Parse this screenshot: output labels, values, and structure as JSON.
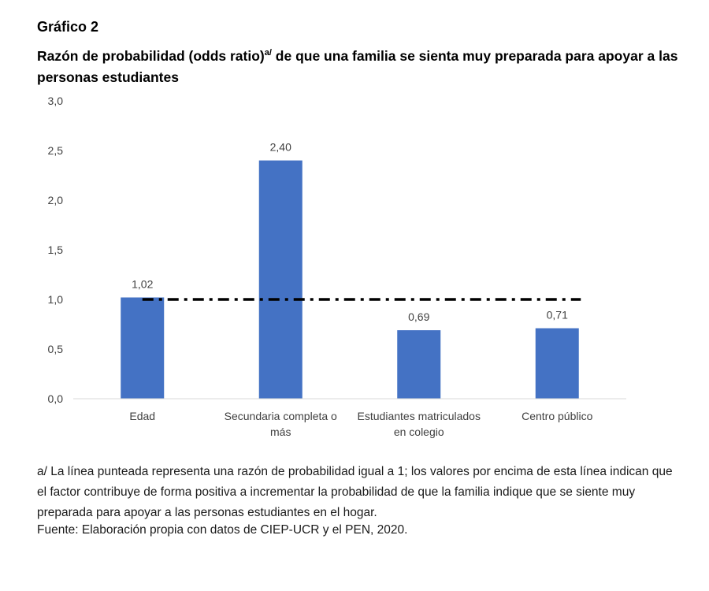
{
  "figure_label": "Gráfico 2",
  "title": {
    "main": "Razón de probabilidad (odds ratio)",
    "marker": "a/",
    "rest": " de que una familia se sienta muy preparada para apoyar a las personas estudiantes"
  },
  "chart_data": {
    "type": "bar",
    "categories": [
      [
        "Edad"
      ],
      [
        "Secundaria completa o",
        "más"
      ],
      [
        "Estudiantes matriculados",
        "en colegio"
      ],
      [
        "Centro público"
      ]
    ],
    "values": [
      1.02,
      2.4,
      0.69,
      0.71
    ],
    "data_labels": [
      "1,02",
      "2,40",
      "0,69",
      "0,71"
    ],
    "ylim": [
      0,
      3
    ],
    "yticks": [
      0,
      0.5,
      1,
      1.5,
      2,
      2.5,
      3
    ],
    "ytick_labels": [
      "0,0",
      "0,5",
      "1,0",
      "1,5",
      "2,0",
      "2,5",
      "3,0"
    ],
    "reference_line": {
      "value": 1.0,
      "style": "dash-dot"
    },
    "bar_color": "#4472c4",
    "grid": false,
    "legend": false
  },
  "note": "a/ La línea punteada representa una razón de probabilidad igual a 1; los valores por encima de esta línea indican que el factor contribuye de forma positiva a incrementar la probabilidad de que la familia indique que se siente muy preparada para apoyar a las personas estudiantes en el hogar.",
  "source": "Fuente: Elaboración propia con datos de CIEP-UCR y el PEN, 2020."
}
